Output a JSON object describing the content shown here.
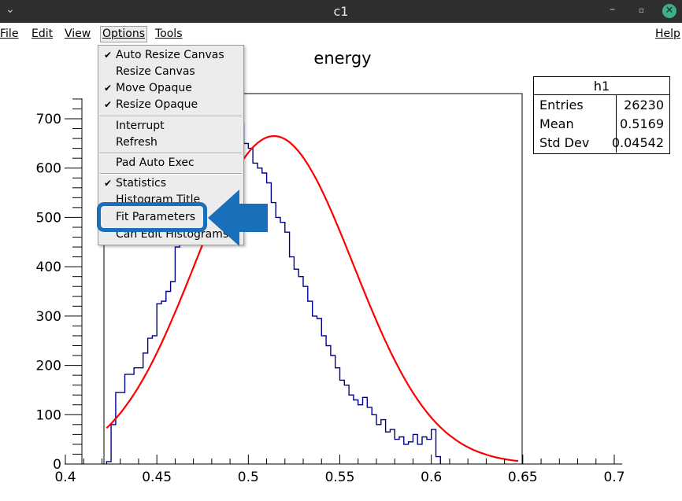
{
  "window": {
    "title": "c1",
    "collapse_icon": "chevron-down-icon",
    "minimize_icon": "minimize-icon",
    "restore_icon": "restore-icon",
    "close_icon": "close-icon"
  },
  "menubar": {
    "items": [
      "File",
      "Edit",
      "View",
      "Options",
      "Tools"
    ],
    "help": "Help"
  },
  "options_menu": {
    "items": [
      {
        "label": "Auto Resize Canvas",
        "checked": true
      },
      {
        "label": "Resize Canvas",
        "checked": false
      },
      {
        "label": "Move Opaque",
        "checked": true
      },
      {
        "label": "Resize Opaque",
        "checked": true
      },
      {
        "label": "Interrupt",
        "checked": false
      },
      {
        "label": "Refresh",
        "checked": false
      },
      {
        "label": "Pad Auto Exec",
        "checked": false
      },
      {
        "label": "Statistics",
        "checked": true
      },
      {
        "label": "Histogram Title",
        "checked": false
      },
      {
        "label": "Fit Parameters",
        "checked": false
      },
      {
        "label": "Can Edit Histograms",
        "checked": false
      }
    ],
    "check_glyph": "✔",
    "highlighted_item": "Fit Parameters",
    "highlight_color": "#1a6fba"
  },
  "annotation": {
    "arrow_icon": "left-arrow-icon",
    "color": "#1a6fba"
  },
  "stats_box": {
    "title": "h1",
    "rows": [
      {
        "key": "Entries",
        "value": "26230"
      },
      {
        "key": "Mean",
        "value": "0.5169"
      },
      {
        "key": "Std Dev",
        "value": "0.04542"
      }
    ]
  },
  "chart_data": {
    "type": "bar",
    "title": "energy",
    "x_ticks": [
      "0.4",
      "0.45",
      "0.5",
      "0.55",
      "0.6",
      "0.65",
      "0.7"
    ],
    "y_ticks": [
      "0",
      "100",
      "200",
      "300",
      "400",
      "500",
      "600",
      "700"
    ],
    "xlim": [
      0.4,
      0.7
    ],
    "ylim": [
      0,
      740
    ],
    "histogram": {
      "name": "h1",
      "color": "#00008b",
      "bin_width": 0.0025,
      "x_start": 0.4225,
      "values": [
        5,
        80,
        145,
        145,
        182,
        182,
        195,
        195,
        225,
        255,
        260,
        325,
        330,
        350,
        370,
        440,
        450,
        520,
        560,
        600,
        655,
        640,
        690,
        700,
        700,
        712,
        700,
        690,
        720,
        690,
        650,
        640,
        610,
        600,
        590,
        570,
        530,
        500,
        490,
        470,
        420,
        395,
        380,
        360,
        330,
        300,
        295,
        260,
        240,
        220,
        195,
        170,
        160,
        140,
        130,
        120,
        135,
        115,
        100,
        80,
        90,
        65,
        70,
        50,
        55,
        40,
        45,
        60,
        40,
        55,
        50,
        70,
        15
      ]
    },
    "fit": {
      "color": "#ff0000",
      "type": "gaus",
      "amplitude": 665,
      "mean": 0.514,
      "sigma": 0.0435,
      "x_range": [
        0.4225,
        0.6475
      ]
    }
  }
}
